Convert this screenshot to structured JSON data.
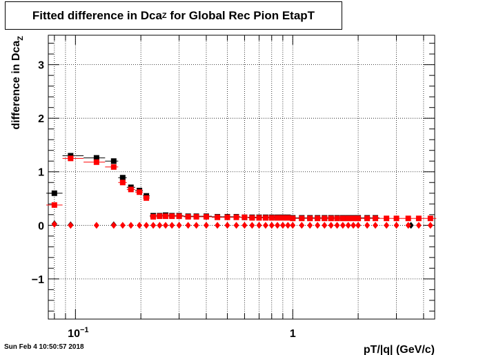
{
  "title": {
    "prefix": "Fitted difference in Dca",
    "subscript": "Z",
    "suffix": " for Global Rec Pion EtapT"
  },
  "footer": {
    "timestamp": "Sun Feb  4 10:50:57 2018"
  },
  "chart_data": {
    "type": "scatter",
    "title": "Fitted difference in Dca_Z for Global Rec Pion EtapT",
    "xlabel": "pT/|q| (GeV/c)",
    "ylabel": "difference in Dca_Z",
    "ylabel_main": "difference in Dca",
    "ylabel_sub": "Z",
    "xscale": "log",
    "xlim": [
      0.075,
      4.5
    ],
    "ylim": [
      -1.75,
      3.55
    ],
    "grid": true,
    "x_major_ticks": [
      {
        "value": 0.1,
        "label": "10",
        "sup": "−1"
      },
      {
        "value": 1,
        "label": "1",
        "sup": ""
      }
    ],
    "y_ticks": [
      {
        "value": -1,
        "label": "−1"
      },
      {
        "value": 0,
        "label": "0"
      },
      {
        "value": 1,
        "label": "1"
      },
      {
        "value": 2,
        "label": "2"
      },
      {
        "value": 3,
        "label": "3"
      }
    ],
    "series": [
      {
        "marker": "square",
        "color": "#000000",
        "xerr": true,
        "points": [
          {
            "x": 0.08,
            "y": 0.6
          },
          {
            "x": 0.095,
            "y": 1.3
          },
          {
            "x": 0.125,
            "y": 1.26
          },
          {
            "x": 0.15,
            "y": 1.2
          },
          {
            "x": 0.165,
            "y": 0.89
          },
          {
            "x": 0.18,
            "y": 0.71
          },
          {
            "x": 0.197,
            "y": 0.65
          },
          {
            "x": 0.212,
            "y": 0.55
          },
          {
            "x": 0.228,
            "y": 0.18
          },
          {
            "x": 0.244,
            "y": 0.18
          },
          {
            "x": 0.26,
            "y": 0.19
          },
          {
            "x": 0.278,
            "y": 0.18
          },
          {
            "x": 0.3,
            "y": 0.18
          },
          {
            "x": 0.33,
            "y": 0.17
          },
          {
            "x": 0.36,
            "y": 0.17
          },
          {
            "x": 0.4,
            "y": 0.17
          },
          {
            "x": 0.45,
            "y": 0.16
          },
          {
            "x": 0.5,
            "y": 0.16
          },
          {
            "x": 0.55,
            "y": 0.16
          },
          {
            "x": 0.6,
            "y": 0.15
          },
          {
            "x": 0.65,
            "y": 0.15
          },
          {
            "x": 0.7,
            "y": 0.15
          },
          {
            "x": 0.75,
            "y": 0.15
          },
          {
            "x": 0.8,
            "y": 0.15
          },
          {
            "x": 0.85,
            "y": 0.15
          },
          {
            "x": 0.9,
            "y": 0.15
          },
          {
            "x": 0.95,
            "y": 0.15
          },
          {
            "x": 1.0,
            "y": 0.14
          },
          {
            "x": 1.1,
            "y": 0.14
          },
          {
            "x": 1.2,
            "y": 0.14
          },
          {
            "x": 1.3,
            "y": 0.14
          },
          {
            "x": 1.4,
            "y": 0.14
          },
          {
            "x": 1.5,
            "y": 0.14
          },
          {
            "x": 1.6,
            "y": 0.14
          },
          {
            "x": 1.7,
            "y": 0.14
          },
          {
            "x": 1.8,
            "y": 0.14
          },
          {
            "x": 1.9,
            "y": 0.14
          },
          {
            "x": 2.0,
            "y": 0.14
          },
          {
            "x": 2.2,
            "y": 0.14
          },
          {
            "x": 2.4,
            "y": 0.14
          }
        ]
      },
      {
        "marker": "square",
        "color": "#ff0000",
        "xerr": true,
        "points": [
          {
            "x": 0.08,
            "y": 0.38
          },
          {
            "x": 0.095,
            "y": 1.25
          },
          {
            "x": 0.125,
            "y": 1.18
          },
          {
            "x": 0.15,
            "y": 1.09
          },
          {
            "x": 0.165,
            "y": 0.8
          },
          {
            "x": 0.18,
            "y": 0.67
          },
          {
            "x": 0.197,
            "y": 0.62
          },
          {
            "x": 0.212,
            "y": 0.51
          },
          {
            "x": 0.228,
            "y": 0.16
          },
          {
            "x": 0.244,
            "y": 0.17
          },
          {
            "x": 0.26,
            "y": 0.17
          },
          {
            "x": 0.278,
            "y": 0.17
          },
          {
            "x": 0.3,
            "y": 0.17
          },
          {
            "x": 0.33,
            "y": 0.16
          },
          {
            "x": 0.36,
            "y": 0.16
          },
          {
            "x": 0.4,
            "y": 0.16
          },
          {
            "x": 0.45,
            "y": 0.15
          },
          {
            "x": 0.5,
            "y": 0.15
          },
          {
            "x": 0.55,
            "y": 0.15
          },
          {
            "x": 0.6,
            "y": 0.15
          },
          {
            "x": 0.65,
            "y": 0.14
          },
          {
            "x": 0.7,
            "y": 0.14
          },
          {
            "x": 0.75,
            "y": 0.14
          },
          {
            "x": 0.8,
            "y": 0.14
          },
          {
            "x": 0.85,
            "y": 0.14
          },
          {
            "x": 0.9,
            "y": 0.14
          },
          {
            "x": 0.95,
            "y": 0.14
          },
          {
            "x": 1.0,
            "y": 0.13
          },
          {
            "x": 1.1,
            "y": 0.13
          },
          {
            "x": 1.2,
            "y": 0.13
          },
          {
            "x": 1.3,
            "y": 0.13
          },
          {
            "x": 1.4,
            "y": 0.13
          },
          {
            "x": 1.5,
            "y": 0.13
          },
          {
            "x": 1.6,
            "y": 0.13
          },
          {
            "x": 1.7,
            "y": 0.13
          },
          {
            "x": 1.8,
            "y": 0.13
          },
          {
            "x": 1.9,
            "y": 0.13
          },
          {
            "x": 2.0,
            "y": 0.13
          },
          {
            "x": 2.2,
            "y": 0.13
          },
          {
            "x": 2.4,
            "y": 0.13
          },
          {
            "x": 2.7,
            "y": 0.13
          },
          {
            "x": 3.0,
            "y": 0.13
          },
          {
            "x": 3.4,
            "y": 0.13
          },
          {
            "x": 3.8,
            "y": 0.13
          },
          {
            "x": 4.3,
            "y": 0.13
          }
        ]
      },
      {
        "marker": "diamond",
        "color": "#000000",
        "xerr": false,
        "points": [
          {
            "x": 0.08,
            "y": 0.03
          },
          {
            "x": 0.095,
            "y": 0.01
          },
          {
            "x": 0.15,
            "y": 0.01
          },
          {
            "x": 3.5,
            "y": 0.0
          }
        ]
      },
      {
        "marker": "diamond",
        "color": "#ff0000",
        "xerr": false,
        "points": [
          {
            "x": 0.08,
            "y": 0.02
          },
          {
            "x": 0.095,
            "y": 0.0
          },
          {
            "x": 0.125,
            "y": 0.0
          },
          {
            "x": 0.15,
            "y": 0.0
          },
          {
            "x": 0.165,
            "y": 0.0
          },
          {
            "x": 0.18,
            "y": 0.0
          },
          {
            "x": 0.197,
            "y": 0.0
          },
          {
            "x": 0.212,
            "y": 0.0
          },
          {
            "x": 0.228,
            "y": 0.0
          },
          {
            "x": 0.244,
            "y": 0.0
          },
          {
            "x": 0.26,
            "y": 0.0
          },
          {
            "x": 0.278,
            "y": 0.0
          },
          {
            "x": 0.3,
            "y": 0.0
          },
          {
            "x": 0.33,
            "y": 0.0
          },
          {
            "x": 0.36,
            "y": 0.0
          },
          {
            "x": 0.4,
            "y": 0.0
          },
          {
            "x": 0.45,
            "y": 0.0
          },
          {
            "x": 0.5,
            "y": 0.0
          },
          {
            "x": 0.55,
            "y": 0.0
          },
          {
            "x": 0.6,
            "y": 0.0
          },
          {
            "x": 0.65,
            "y": 0.0
          },
          {
            "x": 0.7,
            "y": 0.0
          },
          {
            "x": 0.75,
            "y": 0.0
          },
          {
            "x": 0.8,
            "y": 0.0
          },
          {
            "x": 0.85,
            "y": 0.0
          },
          {
            "x": 0.9,
            "y": 0.0
          },
          {
            "x": 0.95,
            "y": 0.0
          },
          {
            "x": 1.0,
            "y": 0.0
          },
          {
            "x": 1.1,
            "y": 0.0
          },
          {
            "x": 1.2,
            "y": 0.0
          },
          {
            "x": 1.3,
            "y": 0.0
          },
          {
            "x": 1.4,
            "y": 0.0
          },
          {
            "x": 1.5,
            "y": 0.0
          },
          {
            "x": 1.6,
            "y": 0.0
          },
          {
            "x": 1.7,
            "y": 0.0
          },
          {
            "x": 1.8,
            "y": 0.0
          },
          {
            "x": 1.9,
            "y": 0.0
          },
          {
            "x": 2.0,
            "y": 0.0
          },
          {
            "x": 2.2,
            "y": 0.0
          },
          {
            "x": 2.4,
            "y": 0.0
          },
          {
            "x": 2.7,
            "y": 0.0
          },
          {
            "x": 3.0,
            "y": 0.0
          },
          {
            "x": 3.4,
            "y": 0.0
          },
          {
            "x": 3.8,
            "y": 0.0
          },
          {
            "x": 4.3,
            "y": 0.0
          }
        ]
      }
    ]
  }
}
